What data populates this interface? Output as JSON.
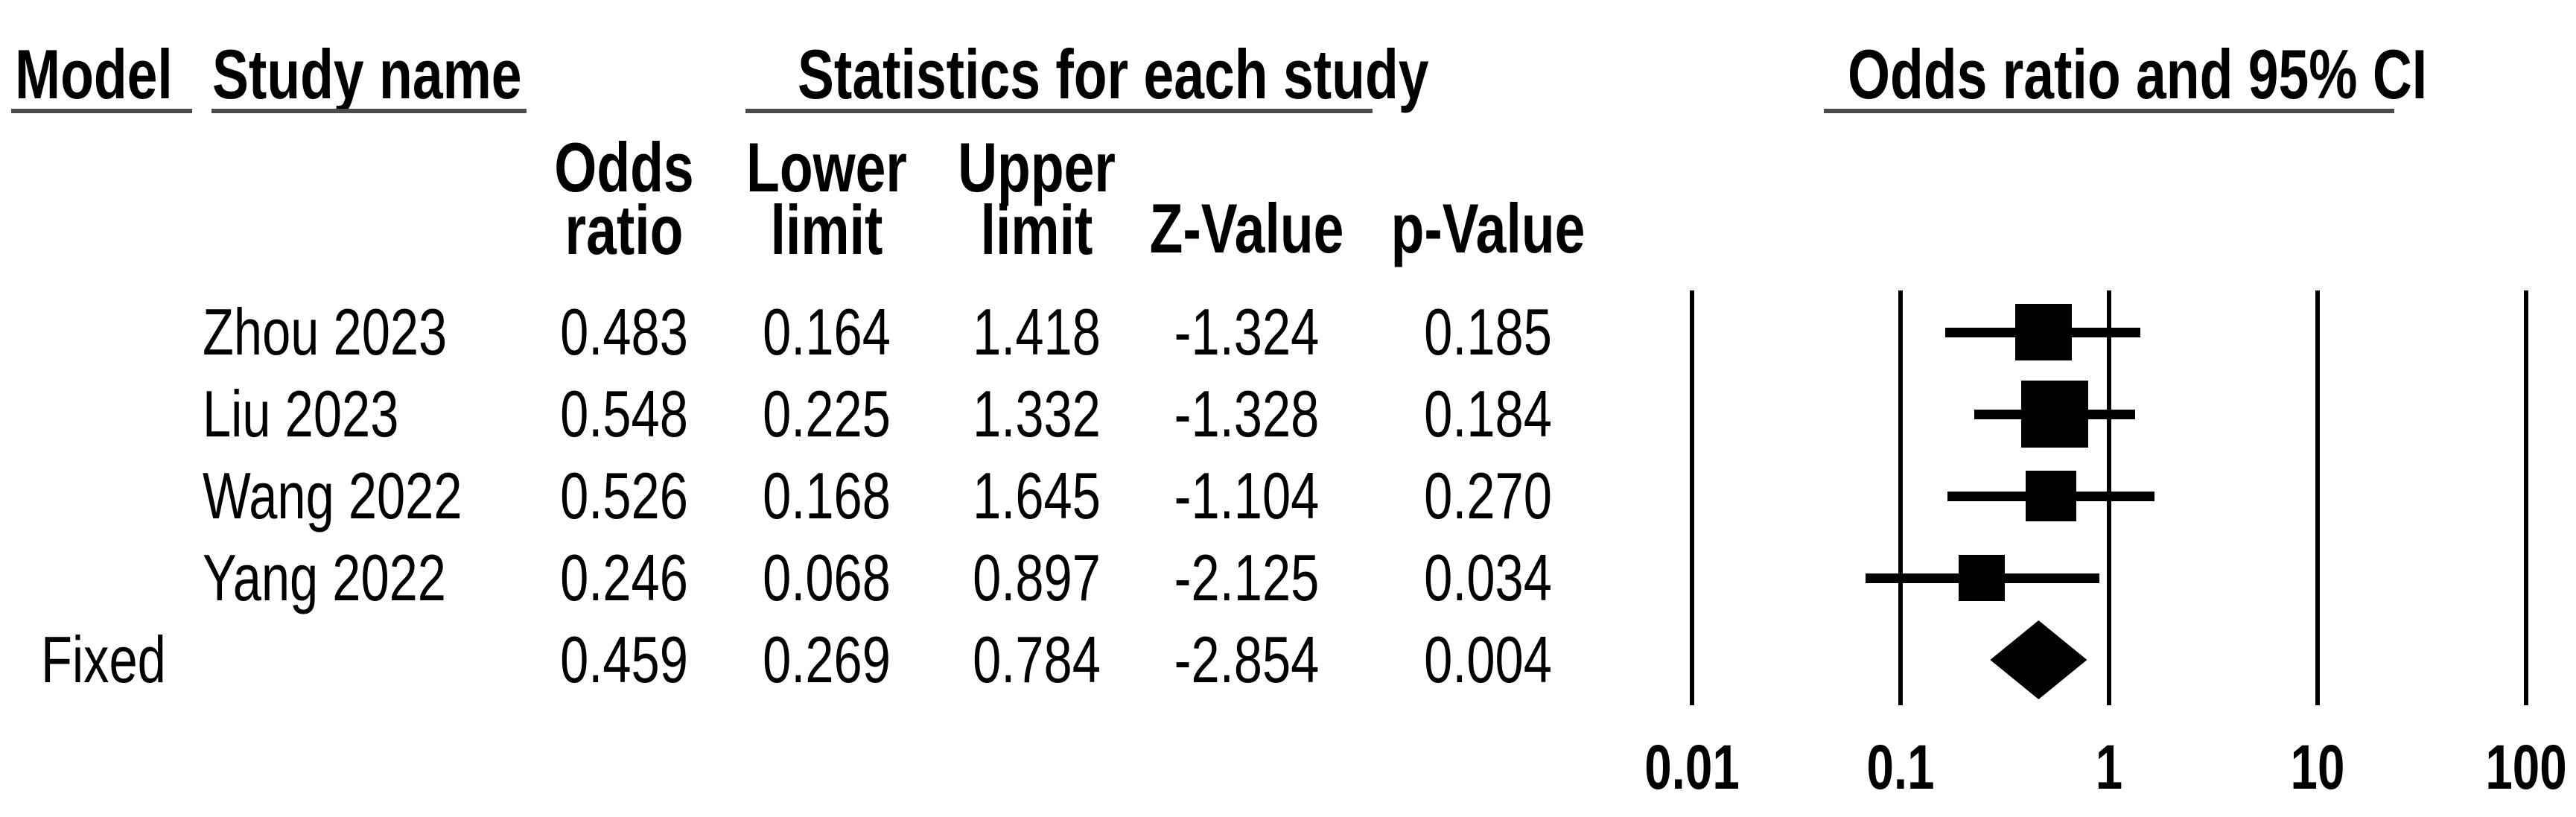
{
  "figure": {
    "background": "#ffffff",
    "text_color": "#000000",
    "underline_color": "#4b4b4b",
    "marker_color": "#000000"
  },
  "table": {
    "header_model": "Model",
    "header_study": "Study name",
    "header_stats_group": "Statistics for each study",
    "columns": [
      {
        "line1": "Odds",
        "line2": "ratio"
      },
      {
        "line1": "Lower",
        "line2": "limit"
      },
      {
        "line1": "Upper",
        "line2": "limit"
      },
      {
        "line1": "",
        "line2": "Z-Value"
      },
      {
        "line1": "",
        "line2": "p-Value"
      }
    ]
  },
  "chart_data": {
    "type": "forest",
    "title": "Odds ratio and 95% CI",
    "x_scale": "log10",
    "x_range": [
      0.01,
      100
    ],
    "x_ticks": [
      0.01,
      0.1,
      1,
      10,
      100
    ],
    "x_tick_labels": [
      "0.01",
      "0.1",
      "1",
      "10",
      "100"
    ],
    "grid": "decade-lines",
    "legend_position": "none",
    "rows": [
      {
        "model": "",
        "study": "Zhou 2023",
        "odds_ratio": "0.483",
        "lower_limit": "0.164",
        "upper_limit": "1.418",
        "z_value": "-1.324",
        "p_value": "0.185",
        "marker": "square",
        "marker_size": 76
      },
      {
        "model": "",
        "study": "Liu 2023",
        "odds_ratio": "0.548",
        "lower_limit": "0.225",
        "upper_limit": "1.332",
        "z_value": "-1.328",
        "p_value": "0.184",
        "marker": "square",
        "marker_size": 90
      },
      {
        "model": "",
        "study": "Wang 2022",
        "odds_ratio": "0.526",
        "lower_limit": "0.168",
        "upper_limit": "1.645",
        "z_value": "-1.104",
        "p_value": "0.270",
        "marker": "square",
        "marker_size": 68
      },
      {
        "model": "",
        "study": "Yang 2022",
        "odds_ratio": "0.246",
        "lower_limit": "0.068",
        "upper_limit": "0.897",
        "z_value": "-2.125",
        "p_value": "0.034",
        "marker": "square",
        "marker_size": 62
      },
      {
        "model": "Fixed",
        "study": "",
        "odds_ratio": "0.459",
        "lower_limit": "0.269",
        "upper_limit": "0.784",
        "z_value": "-2.854",
        "p_value": "0.004",
        "marker": "diamond",
        "marker_size": 106
      }
    ]
  }
}
